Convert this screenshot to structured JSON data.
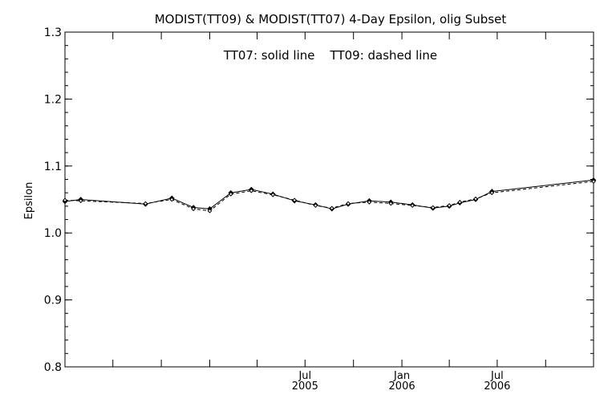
{
  "chart_data": {
    "type": "line",
    "title": "MODIST(TT09) & MODIST(TT07) 4-Day Epsilon, olig Subset",
    "annotation": "TT07: solid line    TT09: dashed line",
    "xlabel": "",
    "ylabel": "Epsilon",
    "xlim": [
      "2004-04-01",
      "2006-12-31"
    ],
    "ylim": [
      0.8,
      1.3
    ],
    "y_ticks": [
      "0.8",
      "0.9",
      "1.0",
      "1.1",
      "1.2",
      "1.3"
    ],
    "x_ticks": [
      {
        "date": "2005-07-01",
        "label": "Jul",
        "year": "2005"
      },
      {
        "date": "2006-01-01",
        "label": "Jan",
        "year": "2006"
      },
      {
        "date": "2006-07-01",
        "label": "Jul",
        "year": "2006"
      }
    ],
    "grid": false,
    "series": [
      {
        "name": "TT07",
        "style": "solid",
        "x": [
          "2004-04-01",
          "2004-05-01",
          "2004-09-01",
          "2004-10-21",
          "2004-12-01",
          "2005-01-01",
          "2005-02-10",
          "2005-03-21",
          "2005-05-01",
          "2005-06-11",
          "2005-07-21",
          "2005-08-21",
          "2005-09-21",
          "2005-10-31",
          "2005-12-11",
          "2006-01-21",
          "2006-03-01",
          "2006-04-01",
          "2006-04-21",
          "2006-05-21",
          "2006-06-21",
          "2006-12-31"
        ],
        "y": [
          1.047,
          1.05,
          1.043,
          1.052,
          1.038,
          1.036,
          1.06,
          1.065,
          1.058,
          1.048,
          1.042,
          1.036,
          1.043,
          1.048,
          1.046,
          1.042,
          1.037,
          1.04,
          1.045,
          1.05,
          1.062,
          1.079
        ]
      },
      {
        "name": "TT09",
        "style": "dashed",
        "x": [
          "2004-04-01",
          "2004-05-01",
          "2004-09-01",
          "2004-10-21",
          "2004-12-01",
          "2005-01-01",
          "2005-02-10",
          "2005-03-21",
          "2005-05-01",
          "2005-06-11",
          "2005-07-21",
          "2005-08-21",
          "2005-09-21",
          "2005-10-31",
          "2005-12-11",
          "2006-01-21",
          "2006-03-01",
          "2006-04-01",
          "2006-04-21",
          "2006-05-21",
          "2006-06-21",
          "2006-12-31"
        ],
        "y": [
          1.049,
          1.048,
          1.044,
          1.05,
          1.036,
          1.033,
          1.058,
          1.063,
          1.057,
          1.049,
          1.041,
          1.037,
          1.044,
          1.046,
          1.044,
          1.041,
          1.038,
          1.041,
          1.046,
          1.051,
          1.06,
          1.077
        ]
      }
    ]
  }
}
